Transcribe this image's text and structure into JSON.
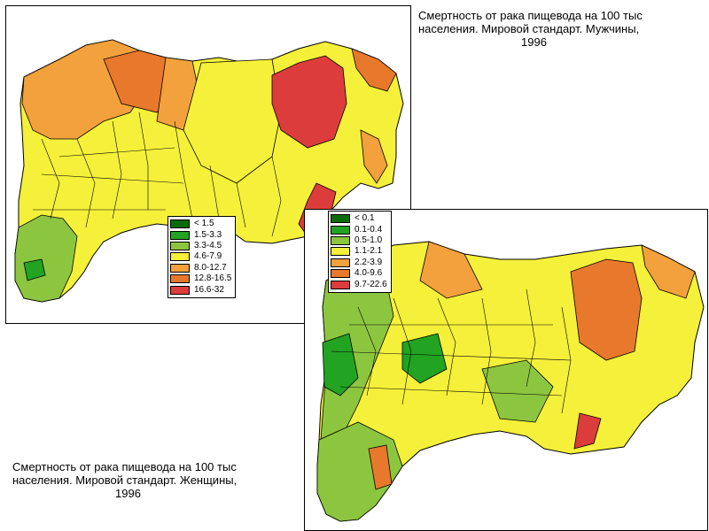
{
  "maps": [
    {
      "id": "men",
      "title_lines": [
        "Смертность от рака пищевода на 100 тыс",
        "населения. Мировой стандарт. Мужчины,",
        "1996"
      ],
      "legend": [
        {
          "label": "< 1.5",
          "color": "#0a6b0a"
        },
        {
          "label": "1.5-3.3",
          "color": "#22a322"
        },
        {
          "label": "3.3-4.5",
          "color": "#8cc63f"
        },
        {
          "label": "4.6-7.9",
          "color": "#f5f03a"
        },
        {
          "label": "8.0-12.7",
          "color": "#f2a13c"
        },
        {
          "label": "12.8-16.5",
          "color": "#e8782c"
        },
        {
          "label": "16.6-32",
          "color": "#dd3c3c"
        }
      ]
    },
    {
      "id": "women",
      "title_lines": [
        "Смертность от рака пищевода на 100 тыс",
        "населения. Мировой стандарт. Женщины,",
        "1996"
      ],
      "legend": [
        {
          "label": "< 0.1",
          "color": "#0a6b0a"
        },
        {
          "label": "0.1-0.4",
          "color": "#22a322"
        },
        {
          "label": "0.5-1.0",
          "color": "#8cc63f"
        },
        {
          "label": "1.1-2.1",
          "color": "#f5f03a"
        },
        {
          "label": "2.2-3.9",
          "color": "#f2a13c"
        },
        {
          "label": "4.0-9.6",
          "color": "#e8782c"
        },
        {
          "label": "9.7-22.6",
          "color": "#dd3c3c"
        }
      ]
    }
  ]
}
